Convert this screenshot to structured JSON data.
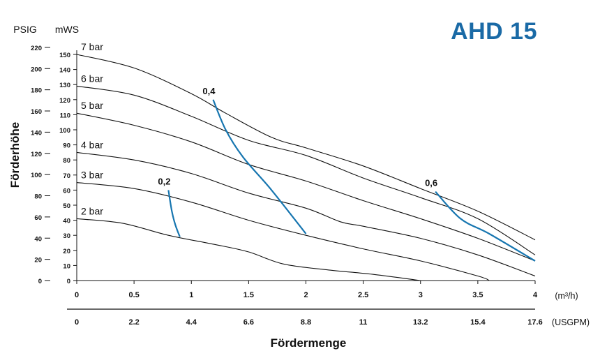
{
  "chart_data": {
    "type": "line",
    "title": "AHD 15",
    "ylabel": "Förderhöhe",
    "xlabel": "Fördermenge",
    "y_units": [
      "PSIG",
      "mWS"
    ],
    "x_units": [
      "(m³/h)",
      "(USGPM)"
    ],
    "x_m3h_ticks": [
      "0",
      "0.5",
      "1",
      "1.5",
      "2",
      "2.5",
      "3",
      "3.5",
      "4"
    ],
    "x_usgpm_ticks": [
      "0",
      "2.2",
      "4.4",
      "6.6",
      "8.8",
      "11",
      "13.2",
      "15.4",
      "17.6"
    ],
    "y_psig_ticks": [
      "0",
      "20",
      "40",
      "60",
      "80",
      "100",
      "120",
      "140",
      "160",
      "180",
      "200",
      "220"
    ],
    "y_mws_ticks": [
      "0",
      "10",
      "20",
      "30",
      "40",
      "50",
      "60",
      "70",
      "80",
      "90",
      "100",
      "110",
      "120",
      "130",
      "140",
      "150"
    ],
    "xlim": [
      0,
      4
    ],
    "ylim": [
      0,
      150
    ],
    "grid": false,
    "series": [
      {
        "name": "7 bar",
        "x": [
          0,
          0.5,
          1,
          1.3,
          1.7,
          2,
          2.5,
          3,
          3.5,
          4
        ],
        "y": [
          150,
          141,
          124,
          111,
          95,
          88,
          76,
          61,
          46,
          27
        ]
      },
      {
        "name": "6 bar",
        "x": [
          0,
          0.5,
          1,
          1.5,
          2,
          2.5,
          3,
          3.5,
          4
        ],
        "y": [
          129,
          123,
          109,
          93,
          83,
          68,
          55,
          41,
          17
        ]
      },
      {
        "name": "5 bar",
        "x": [
          0,
          0.5,
          1,
          1.5,
          2,
          2.5,
          3,
          3.5,
          4
        ],
        "y": [
          111,
          103,
          92,
          77,
          66,
          53,
          41,
          28,
          13
        ]
      },
      {
        "name": "4 bar",
        "x": [
          0,
          0.5,
          1,
          1.5,
          2,
          2.3,
          2.5,
          3,
          3.5,
          4
        ],
        "y": [
          85,
          80,
          71,
          58,
          48,
          39,
          36,
          28,
          17,
          3
        ]
      },
      {
        "name": "3 bar",
        "x": [
          0,
          0.5,
          1,
          1.5,
          2,
          2.5,
          3,
          3.5,
          3.6
        ],
        "y": [
          65,
          61,
          52,
          40,
          30,
          21,
          13,
          3,
          0
        ]
      },
      {
        "name": "2 bar",
        "x": [
          0,
          0.4,
          0.8,
          1.2,
          1.5,
          1.8,
          2.2,
          2.6,
          3
        ],
        "y": [
          41,
          38,
          30,
          24,
          19,
          11,
          7,
          4,
          0
        ]
      }
    ],
    "curve_labels": [
      "7 bar",
      "6 bar",
      "5 bar",
      "4 bar",
      "3 bar",
      "2 bar"
    ],
    "air_consumption": [
      {
        "name": "0,2",
        "x": [
          0.8,
          0.83,
          0.86,
          0.9
        ],
        "y": [
          60,
          46,
          37,
          29
        ]
      },
      {
        "name": "0,4",
        "x": [
          1.19,
          1.3,
          1.45,
          1.7,
          2.0
        ],
        "y": [
          120,
          100,
          82,
          60,
          31
        ]
      },
      {
        "name": "0,6",
        "x": [
          3.13,
          3.35,
          3.6,
          4.0
        ],
        "y": [
          59,
          41,
          31,
          13
        ]
      }
    ],
    "colors": {
      "performance": "#111111",
      "air": "#1776b0",
      "title": "#1a6aa6"
    }
  }
}
